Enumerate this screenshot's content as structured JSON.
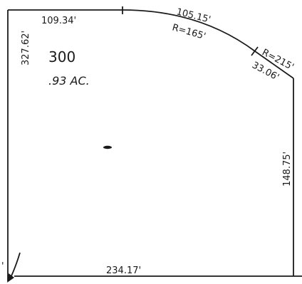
{
  "lot": {
    "number": "300",
    "area": ".93 AC."
  },
  "dimensions": {
    "top": "109.34'",
    "left": "327.62'",
    "curve_length": "105.15'",
    "curve_radius": "R=165'",
    "small_curve_radius": "R=215'",
    "small_curve_length": "33.06'",
    "right": "148.75'",
    "bottom": "234.17'",
    "partial_edge": "'"
  }
}
